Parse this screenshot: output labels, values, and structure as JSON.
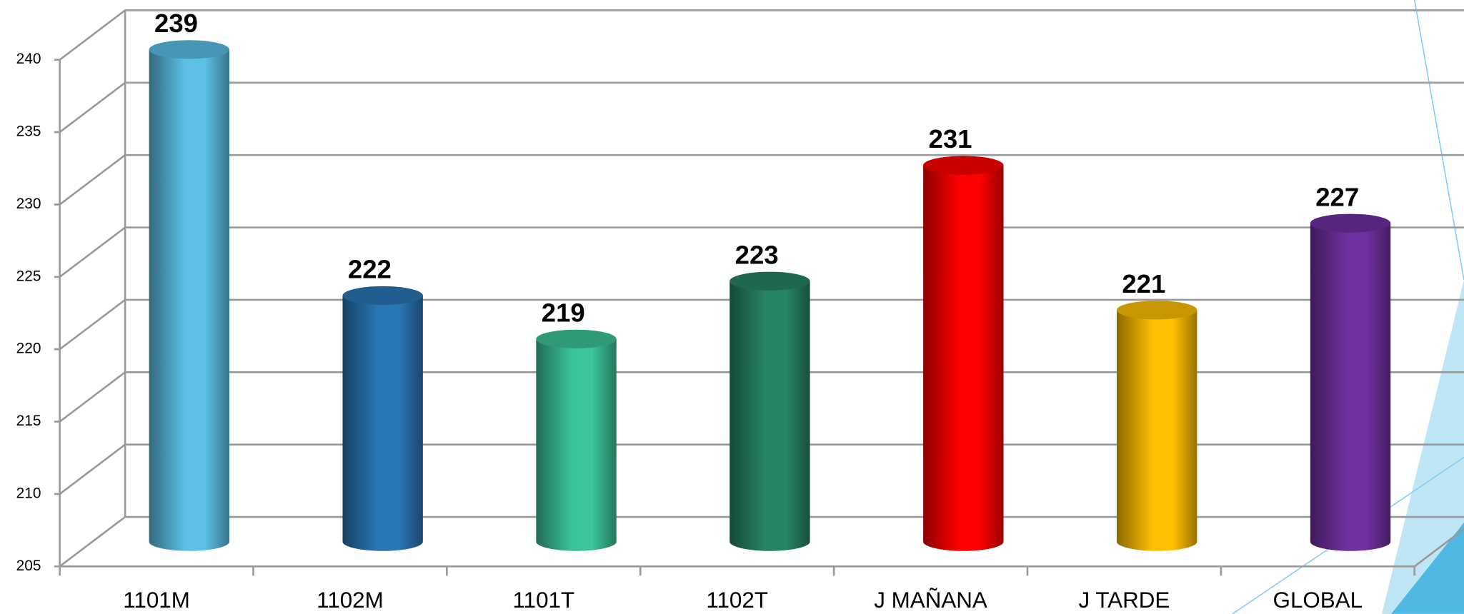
{
  "chart_data": {
    "type": "bar",
    "categories": [
      "1101M",
      "1102M",
      "1101T",
      "1102T",
      "J MAÑANA",
      "J TARDE",
      "GLOBAL"
    ],
    "values": [
      239,
      222,
      219,
      223,
      231,
      221,
      227
    ],
    "colors": [
      "#5bc0e6",
      "#2a77b6",
      "#3cc49a",
      "#26865f",
      "#ff0000",
      "#ffc000",
      "#7030a0"
    ],
    "ylim": [
      205,
      240
    ],
    "yticks": [
      205,
      210,
      215,
      220,
      225,
      230,
      235,
      240
    ],
    "grid": true
  }
}
